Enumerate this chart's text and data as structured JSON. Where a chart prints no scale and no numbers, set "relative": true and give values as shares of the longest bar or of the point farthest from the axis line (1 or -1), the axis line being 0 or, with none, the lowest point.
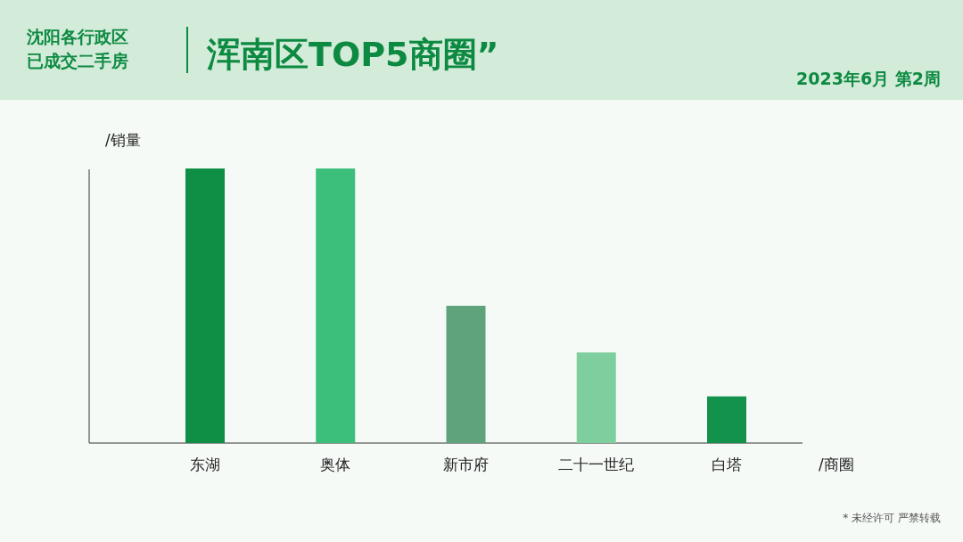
{
  "chart_data": {
    "type": "bar",
    "title": "浑南区TOP5商圈”",
    "subtitle": "2023年6月 第2周",
    "annotations": [
      "沈阳各行政区",
      "已成交二手房",
      "* 未经许可 严禁转载"
    ],
    "ylabel": "/销量",
    "xlabel": "/商圈",
    "categories": [
      "东湖",
      "奥体",
      "新市府",
      "二十一世纪",
      "白塔"
    ],
    "values": [
      1,
      1,
      0.5,
      0.33,
      0.17
    ],
    "colors": [
      "#0f8f45",
      "#3cbf7b",
      "#5fa37d",
      "#7fcf9e",
      "#12924a"
    ],
    "relative": true
  }
}
